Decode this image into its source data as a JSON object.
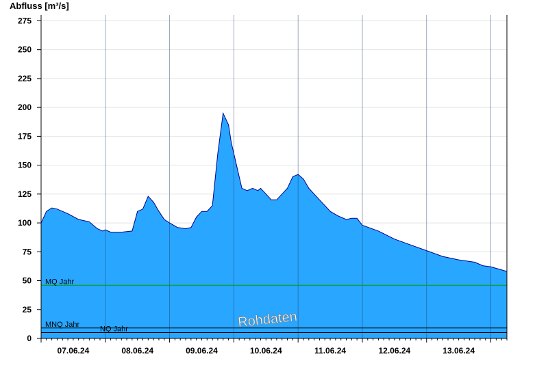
{
  "chart_data": {
    "type": "area",
    "ylabel": "Abfluss [m³/s]",
    "ylim": [
      0,
      280
    ],
    "yticks": [
      0,
      25,
      50,
      75,
      100,
      125,
      150,
      175,
      200,
      225,
      250,
      275
    ],
    "xlim": [
      "2024-06-06T12:00",
      "2024-06-13T18:00"
    ],
    "xticks": [
      {
        "date": "2024-06-07",
        "label": "07.06.24"
      },
      {
        "date": "2024-06-08",
        "label": "08.06.24"
      },
      {
        "date": "2024-06-09",
        "label": "09.06.24"
      },
      {
        "date": "2024-06-10",
        "label": "10.06.24"
      },
      {
        "date": "2024-06-11",
        "label": "11.06.24"
      },
      {
        "date": "2024-06-12",
        "label": "12.06.24"
      },
      {
        "date": "2024-06-13",
        "label": "13.06.24"
      }
    ],
    "grid": true,
    "fill_color": "#29a6ff",
    "line_color": "#00008b",
    "series": [
      {
        "x": [
          "2024-06-06T12:00",
          "2024-06-06T14:00",
          "2024-06-06T16:00",
          "2024-06-06T18:00",
          "2024-06-06T22:00",
          "2024-06-07T02:00",
          "2024-06-07T06:00",
          "2024-06-07T09:00",
          "2024-06-07T11:00",
          "2024-06-07T12:00",
          "2024-06-07T14:00",
          "2024-06-07T18:00",
          "2024-06-07T22:00",
          "2024-06-08T00:00",
          "2024-06-08T02:00",
          "2024-06-08T04:00",
          "2024-06-08T06:00",
          "2024-06-08T08:00",
          "2024-06-08T10:00",
          "2024-06-08T12:00",
          "2024-06-08T15:00",
          "2024-06-08T18:00",
          "2024-06-08T20:00",
          "2024-06-08T22:00",
          "2024-06-09T00:00",
          "2024-06-09T02:00",
          "2024-06-09T04:00",
          "2024-06-09T06:00",
          "2024-06-09T08:00",
          "2024-06-09T10:00",
          "2024-06-09T11:00",
          "2024-06-09T12:00",
          "2024-06-09T13:00",
          "2024-06-09T14:00",
          "2024-06-09T15:00",
          "2024-06-09T17:00",
          "2024-06-09T19:00",
          "2024-06-09T21:00",
          "2024-06-09T22:00",
          "2024-06-10T00:00",
          "2024-06-10T02:00",
          "2024-06-10T04:00",
          "2024-06-10T06:00",
          "2024-06-10T08:00",
          "2024-06-10T10:00",
          "2024-06-10T12:00",
          "2024-06-10T14:00",
          "2024-06-10T16:00",
          "2024-06-10T18:00",
          "2024-06-10T20:00",
          "2024-06-10T22:00",
          "2024-06-11T00:00",
          "2024-06-11T03:00",
          "2024-06-11T06:00",
          "2024-06-11T08:00",
          "2024-06-11T10:00",
          "2024-06-11T12:00",
          "2024-06-11T18:00",
          "2024-06-12T00:00",
          "2024-06-12T06:00",
          "2024-06-12T12:00",
          "2024-06-12T18:00",
          "2024-06-13T00:00",
          "2024-06-13T06:00",
          "2024-06-13T09:00",
          "2024-06-13T12:00",
          "2024-06-13T18:00"
        ],
        "y": [
          100,
          110,
          113,
          112,
          108,
          103,
          101,
          95,
          93,
          94,
          92,
          92,
          93,
          110,
          112,
          123,
          118,
          110,
          103,
          100,
          96,
          95,
          96,
          105,
          110,
          110,
          115,
          160,
          195,
          185,
          170,
          160,
          150,
          140,
          130,
          128,
          130,
          128,
          130,
          125,
          120,
          120,
          125,
          130,
          140,
          142,
          138,
          130,
          125,
          120,
          115,
          110,
          106,
          103,
          104,
          104,
          98,
          93,
          86,
          81,
          76,
          71,
          68,
          66,
          63,
          62,
          58
        ]
      }
    ],
    "reference_lines": [
      {
        "label": "MQ Jahr",
        "value": 46,
        "color": "#00a000"
      },
      {
        "label": "MNQ Jahr",
        "value": 9,
        "color": "#000000"
      },
      {
        "label": "NQ Jahr",
        "value": 5,
        "color": "#000000"
      }
    ],
    "watermark": "Rohdaten"
  }
}
